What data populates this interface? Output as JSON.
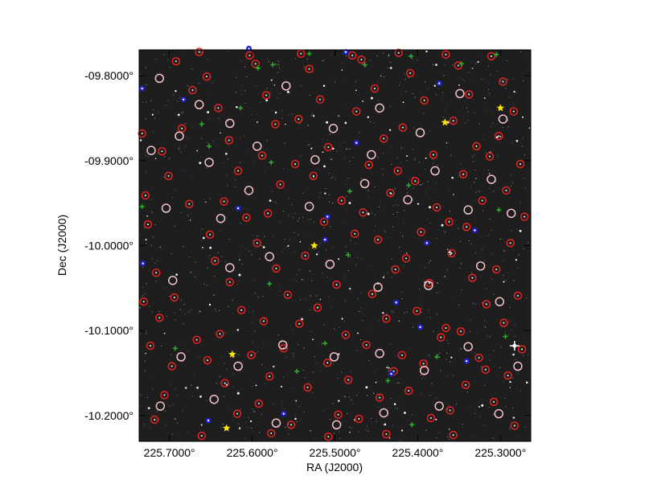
{
  "chart_data": {
    "type": "scatter",
    "title": "",
    "xlabel": "RA (J2000)",
    "ylabel": "Dec (J2000)",
    "xlim": [
      225.7366,
      225.2634
    ],
    "ylim": [
      -10.2305,
      -9.7695
    ],
    "x_ticks": [
      {
        "value": 225.7,
        "label": "225.7000°"
      },
      {
        "value": 225.6,
        "label": "225.6000°"
      },
      {
        "value": 225.5,
        "label": "225.5000°"
      },
      {
        "value": 225.4,
        "label": "225.4000°"
      },
      {
        "value": 225.3,
        "label": "225.3000°"
      }
    ],
    "y_ticks": [
      {
        "value": -9.8,
        "label": "-09.8000°"
      },
      {
        "value": -9.9,
        "label": "-09.9000°"
      },
      {
        "value": -10.0,
        "label": "-10.0000°"
      },
      {
        "value": -10.1,
        "label": "-10.1000°"
      },
      {
        "value": -10.2,
        "label": "-10.2000°"
      }
    ],
    "colors": {
      "background": "#1e1e1e",
      "red_markers": "#e8231e",
      "pink_markers": "#f5c3c8",
      "blue_markers": "#2020d2",
      "green_markers": "#28b428",
      "yellow_markers": "#ffe600"
    },
    "series": [
      {
        "marker": "red-circle",
        "points": [
          [
            225.692,
            -9.783
          ],
          [
            225.672,
            -9.817
          ],
          [
            225.685,
            -9.862
          ],
          [
            225.709,
            -9.889
          ],
          [
            225.701,
            -9.918
          ],
          [
            225.726,
            -9.975
          ],
          [
            225.716,
            -10.032
          ],
          [
            225.694,
            -10.061
          ],
          [
            225.712,
            -10.085
          ],
          [
            225.723,
            -10.118
          ],
          [
            225.697,
            -10.142
          ],
          [
            225.706,
            -10.176
          ],
          [
            225.718,
            -10.205
          ],
          [
            225.655,
            -9.801
          ],
          [
            225.641,
            -9.838
          ],
          [
            225.628,
            -9.876
          ],
          [
            225.617,
            -9.912
          ],
          [
            225.634,
            -9.948
          ],
          [
            225.651,
            -9.987
          ],
          [
            225.645,
            -10.018
          ],
          [
            225.627,
            -10.043
          ],
          [
            225.613,
            -10.076
          ],
          [
            225.639,
            -10.104
          ],
          [
            225.654,
            -10.135
          ],
          [
            225.633,
            -10.162
          ],
          [
            225.618,
            -10.198
          ],
          [
            225.596,
            -9.786
          ],
          [
            225.583,
            -9.823
          ],
          [
            225.572,
            -9.857
          ],
          [
            225.588,
            -9.894
          ],
          [
            225.566,
            -9.928
          ],
          [
            225.581,
            -9.962
          ],
          [
            225.594,
            -9.997
          ],
          [
            225.571,
            -10.027
          ],
          [
            225.557,
            -10.058
          ],
          [
            225.586,
            -10.089
          ],
          [
            225.562,
            -10.121
          ],
          [
            225.579,
            -10.154
          ],
          [
            225.592,
            -10.186
          ],
          [
            225.553,
            -10.211
          ],
          [
            225.531,
            -9.792
          ],
          [
            225.518,
            -9.828
          ],
          [
            225.544,
            -9.851
          ],
          [
            225.508,
            -9.884
          ],
          [
            225.526,
            -9.918
          ],
          [
            225.492,
            -9.947
          ],
          [
            225.513,
            -9.972
          ],
          [
            225.536,
            -10.012
          ],
          [
            225.498,
            -10.046
          ],
          [
            225.521,
            -10.073
          ],
          [
            225.487,
            -10.105
          ],
          [
            225.509,
            -10.138
          ],
          [
            225.533,
            -10.167
          ],
          [
            225.496,
            -10.199
          ],
          [
            225.468,
            -9.781
          ],
          [
            225.452,
            -9.815
          ],
          [
            225.474,
            -9.842
          ],
          [
            225.441,
            -9.874
          ],
          [
            225.459,
            -9.905
          ],
          [
            225.433,
            -9.938
          ],
          [
            225.466,
            -9.961
          ],
          [
            225.448,
            -9.993
          ],
          [
            225.427,
            -10.028
          ],
          [
            225.455,
            -10.057
          ],
          [
            225.438,
            -10.086
          ],
          [
            225.462,
            -10.117
          ],
          [
            225.429,
            -10.148
          ],
          [
            225.446,
            -10.179
          ],
          [
            225.471,
            -10.204
          ],
          [
            225.409,
            -9.797
          ],
          [
            225.392,
            -9.829
          ],
          [
            225.418,
            -9.861
          ],
          [
            225.381,
            -9.893
          ],
          [
            225.403,
            -9.924
          ],
          [
            225.377,
            -9.955
          ],
          [
            225.396,
            -9.984
          ],
          [
            225.414,
            -10.015
          ],
          [
            225.386,
            -10.044
          ],
          [
            225.401,
            -10.077
          ],
          [
            225.372,
            -10.108
          ],
          [
            225.393,
            -10.139
          ],
          [
            225.411,
            -10.171
          ],
          [
            225.384,
            -10.203
          ],
          [
            225.351,
            -9.788
          ],
          [
            225.338,
            -9.822
          ],
          [
            225.357,
            -9.853
          ],
          [
            225.329,
            -9.883
          ],
          [
            225.345,
            -9.916
          ],
          [
            225.322,
            -9.947
          ],
          [
            225.341,
            -9.978
          ],
          [
            225.359,
            -10.009
          ],
          [
            225.334,
            -10.038
          ],
          [
            225.317,
            -10.069
          ],
          [
            225.348,
            -10.101
          ],
          [
            225.326,
            -10.132
          ],
          [
            225.342,
            -10.164
          ],
          [
            225.361,
            -10.194
          ],
          [
            225.297,
            -9.807
          ],
          [
            225.284,
            -9.842
          ],
          [
            225.302,
            -9.871
          ],
          [
            225.276,
            -9.904
          ],
          [
            225.293,
            -9.935
          ],
          [
            225.271,
            -9.966
          ],
          [
            225.288,
            -9.997
          ],
          [
            225.305,
            -10.028
          ],
          [
            225.279,
            -10.059
          ],
          [
            225.296,
            -10.091
          ],
          [
            225.274,
            -10.122
          ],
          [
            225.291,
            -10.153
          ],
          [
            225.308,
            -10.184
          ],
          [
            225.283,
            -10.212
          ],
          [
            225.733,
            -9.868
          ],
          [
            225.729,
            -9.941
          ],
          [
            225.731,
            -10.066
          ],
          [
            225.664,
            -9.772
          ],
          [
            225.603,
            -9.776
          ],
          [
            225.541,
            -9.774
          ],
          [
            225.479,
            -9.776
          ],
          [
            225.423,
            -9.773
          ],
          [
            225.366,
            -9.775
          ],
          [
            225.311,
            -9.777
          ],
          [
            225.661,
            -10.224
          ],
          [
            225.577,
            -10.221
          ],
          [
            225.508,
            -10.225
          ],
          [
            225.438,
            -10.222
          ],
          [
            225.357,
            -10.223
          ],
          [
            225.676,
            -9.951
          ],
          [
            225.607,
            -9.967
          ],
          [
            225.548,
            -9.904
          ],
          [
            225.476,
            -9.986
          ],
          [
            225.424,
            -9.912
          ],
          [
            225.362,
            -9.972
          ],
          [
            225.313,
            -9.895
          ],
          [
            225.667,
            -10.111
          ],
          [
            225.601,
            -10.129
          ],
          [
            225.543,
            -10.092
          ],
          [
            225.484,
            -10.158
          ],
          [
            225.419,
            -10.129
          ],
          [
            225.366,
            -10.097
          ],
          [
            225.318,
            -10.146
          ]
        ]
      },
      {
        "marker": "pink-circle",
        "points": [
          [
            225.712,
            -9.803
          ],
          [
            225.664,
            -9.834
          ],
          [
            225.688,
            -9.871
          ],
          [
            225.627,
            -9.856
          ],
          [
            225.559,
            -9.812
          ],
          [
            225.502,
            -9.862
          ],
          [
            225.446,
            -9.838
          ],
          [
            225.397,
            -9.867
          ],
          [
            225.349,
            -9.821
          ],
          [
            225.297,
            -9.851
          ],
          [
            225.704,
            -9.956
          ],
          [
            225.638,
            -9.968
          ],
          [
            225.604,
            -9.935
          ],
          [
            225.531,
            -9.954
          ],
          [
            225.464,
            -9.927
          ],
          [
            225.412,
            -9.946
          ],
          [
            225.339,
            -9.958
          ],
          [
            225.287,
            -9.962
          ],
          [
            225.696,
            -10.041
          ],
          [
            225.627,
            -10.026
          ],
          [
            225.579,
            -10.013
          ],
          [
            225.506,
            -10.022
          ],
          [
            225.448,
            -10.049
          ],
          [
            225.387,
            -10.047
          ],
          [
            225.324,
            -10.024
          ],
          [
            225.301,
            -10.066
          ],
          [
            225.686,
            -10.131
          ],
          [
            225.617,
            -10.142
          ],
          [
            225.563,
            -10.117
          ],
          [
            225.501,
            -10.131
          ],
          [
            225.446,
            -10.127
          ],
          [
            225.392,
            -10.147
          ],
          [
            225.339,
            -10.119
          ],
          [
            225.279,
            -10.142
          ],
          [
            225.711,
            -10.189
          ],
          [
            225.646,
            -10.181
          ],
          [
            225.571,
            -10.209
          ],
          [
            225.498,
            -10.211
          ],
          [
            225.441,
            -10.197
          ],
          [
            225.374,
            -10.189
          ],
          [
            225.302,
            -10.198
          ],
          [
            225.722,
            -9.888
          ],
          [
            225.652,
            -9.902
          ],
          [
            225.594,
            -9.883
          ],
          [
            225.524,
            -9.899
          ],
          [
            225.456,
            -9.893
          ],
          [
            225.379,
            -9.912
          ],
          [
            225.311,
            -9.922
          ]
        ]
      },
      {
        "marker": "blue-dot",
        "points": [
          [
            225.683,
            -9.828
          ],
          [
            225.604,
            -9.768
          ],
          [
            225.487,
            -9.772
          ],
          [
            225.374,
            -9.809
          ],
          [
            225.512,
            -9.993
          ],
          [
            225.389,
            -9.997
          ],
          [
            225.426,
            -10.067
          ],
          [
            225.432,
            -10.151
          ],
          [
            225.562,
            -10.198
          ],
          [
            225.653,
            -10.206
          ],
          [
            225.397,
            -10.096
          ],
          [
            225.617,
            -9.956
          ],
          [
            225.509,
            -9.966
          ],
          [
            225.331,
            -9.982
          ],
          [
            225.733,
            -9.815
          ],
          [
            225.732,
            -10.021
          ],
          [
            225.341,
            -10.136
          ],
          [
            225.474,
            -9.879
          ]
        ]
      },
      {
        "marker": "green-plus",
        "points": [
          [
            225.661,
            -9.857
          ],
          [
            225.614,
            -9.838
          ],
          [
            225.593,
            -9.791
          ],
          [
            225.575,
            -9.787
          ],
          [
            225.531,
            -9.774
          ],
          [
            225.464,
            -9.787
          ],
          [
            225.408,
            -9.777
          ],
          [
            225.347,
            -9.786
          ],
          [
            225.305,
            -9.775
          ],
          [
            225.652,
            -9.883
          ],
          [
            225.577,
            -9.902
          ],
          [
            225.482,
            -9.936
          ],
          [
            225.411,
            -9.929
          ],
          [
            225.302,
            -9.958
          ],
          [
            225.579,
            -10.045
          ],
          [
            225.484,
            -10.011
          ],
          [
            225.377,
            -10.131
          ],
          [
            225.512,
            -10.115
          ],
          [
            225.693,
            -10.121
          ],
          [
            225.546,
            -10.148
          ],
          [
            225.436,
            -10.159
          ],
          [
            225.407,
            -10.211
          ],
          [
            225.294,
            -10.107
          ],
          [
            225.733,
            -9.954
          ]
        ]
      },
      {
        "marker": "yellow-star",
        "points": [
          [
            225.3,
            -9.838
          ],
          [
            225.367,
            -9.855
          ],
          [
            225.525,
            -10.0
          ],
          [
            225.624,
            -10.128
          ],
          [
            225.631,
            -10.215
          ]
        ]
      },
      {
        "marker": "white-bright-star",
        "points": [
          [
            225.283,
            -10.118
          ]
        ]
      }
    ]
  }
}
